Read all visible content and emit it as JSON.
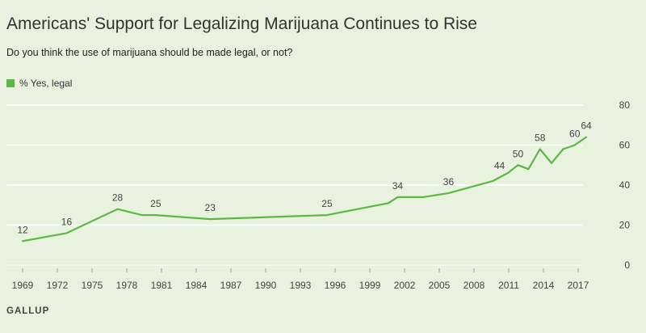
{
  "chart_data": {
    "type": "line",
    "title": "Americans' Support for Legalizing Marijuana Continues to Rise",
    "subtitle": "Do you think the use of marijuana should be made legal, or not?",
    "xlabel": "",
    "ylabel": "",
    "ylim": [
      0,
      80
    ],
    "xlim": [
      1968.5,
      2019
    ],
    "y_ticks": [
      "0",
      "20",
      "40",
      "60",
      "80"
    ],
    "x_ticks": [
      "1969",
      "1972",
      "1975",
      "1978",
      "1981",
      "1984",
      "1987",
      "1990",
      "1993",
      "1996",
      "1999",
      "2002",
      "2005",
      "2008",
      "2011",
      "2014",
      "2017"
    ],
    "grid": true,
    "legend_position": "top-left",
    "series": [
      {
        "name": "% Yes, legal",
        "color": "#5cb845",
        "x": [
          1969,
          1972.8,
          1977.2,
          1979.3,
          1980.5,
          1985.2,
          1995.3,
          2000.6,
          2001.4,
          2003.6,
          2005.8,
          2009.6,
          2010.9,
          2011.8,
          2012.7,
          2013.7,
          2014.7,
          2015.7,
          2016.7,
          2017.7
        ],
        "values": [
          12,
          16,
          28,
          25,
          25,
          23,
          25,
          31,
          34,
          34,
          36,
          42,
          46,
          50,
          48,
          58,
          51,
          58,
          60,
          64
        ]
      }
    ],
    "annotations": [
      {
        "label": "12",
        "x": 1969,
        "y": 12
      },
      {
        "label": "16",
        "x": 1972.8,
        "y": 16
      },
      {
        "label": "28",
        "x": 1977.2,
        "y": 28
      },
      {
        "label": "25",
        "x": 1980.5,
        "y": 25
      },
      {
        "label": "23",
        "x": 1985.2,
        "y": 23
      },
      {
        "label": "25",
        "x": 1995.3,
        "y": 25
      },
      {
        "label": "34",
        "x": 2001.4,
        "y": 34
      },
      {
        "label": "36",
        "x": 2005.8,
        "y": 36
      },
      {
        "label": "44",
        "x": 2010.2,
        "y": 44
      },
      {
        "label": "50",
        "x": 2011.8,
        "y": 50
      },
      {
        "label": "58",
        "x": 2013.7,
        "y": 58
      },
      {
        "label": "60",
        "x": 2016.7,
        "y": 60
      },
      {
        "label": "64",
        "x": 2017.7,
        "y": 64
      }
    ]
  },
  "source": "GALLUP",
  "colors": {
    "background": "#e9f2df",
    "line": "#5cb845",
    "grid": "#ffffff",
    "text": "#444444"
  }
}
